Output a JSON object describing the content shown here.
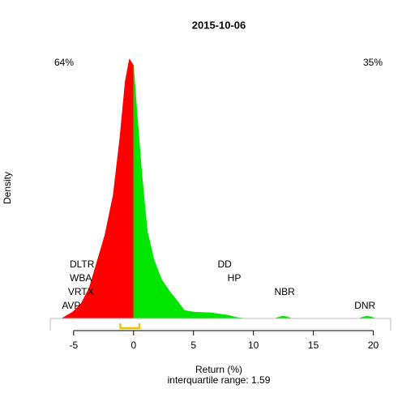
{
  "chart_data": {
    "type": "area",
    "title": "2015-10-06",
    "x_label": "Return (%)",
    "y_label": "Density",
    "subtitle": "interquartile range: 1.59",
    "xlim": [
      -6.95,
      21.45
    ],
    "ylim": [
      0,
      0.45
    ],
    "xticks": [
      -5,
      0,
      5,
      10,
      15,
      20
    ],
    "series": [
      {
        "color": "#ff0000",
        "x": [
          -6,
          -5.1,
          -4.4,
          -3.7,
          -3.0,
          -2.4,
          -1.7,
          -1.15,
          -0.7,
          -0.35,
          0
        ],
        "values": [
          0,
          0.011,
          0.025,
          0.053,
          0.102,
          0.144,
          0.214,
          0.312,
          0.41,
          0.449,
          0.438
        ]
      },
      {
        "color": "#00e600",
        "x": [
          0,
          0.35,
          0.7,
          1.15,
          1.7,
          2.35,
          3.05,
          3.7,
          4.25,
          5.05,
          6.4,
          7.8,
          8.8,
          9.5,
          11.8,
          12.2,
          12.5,
          12.8,
          13.2,
          18.8,
          19.2,
          19.5,
          19.8,
          20.2
        ],
        "values": [
          0.438,
          0.34,
          0.249,
          0.151,
          0.102,
          0.067,
          0.046,
          0.029,
          0.014,
          0.011,
          0.01,
          0.006,
          0.001,
          0,
          0,
          0.003,
          0.004,
          0.003,
          0,
          0,
          0.003,
          0.004,
          0.003,
          0
        ]
      }
    ],
    "shares": [
      {
        "text": "64%",
        "color": "#ff0000"
      },
      {
        "text": "35%",
        "color": "#00a000"
      }
    ],
    "labels": [
      {
        "text": "DLTR",
        "x": -4.3
      },
      {
        "text": "WBA",
        "x": -4.4
      },
      {
        "text": "VRTX",
        "x": -4.4
      },
      {
        "text": "AVP",
        "x": -5.2
      },
      {
        "text": "DD",
        "x": 7.6
      },
      {
        "text": "HP",
        "x": 8.4
      },
      {
        "text": "NBR",
        "x": 12.6
      },
      {
        "text": "DNR",
        "x": 19.3
      }
    ],
    "iqr": [
      -1.1,
      0.49
    ],
    "iqr_color": "#f5c400"
  }
}
